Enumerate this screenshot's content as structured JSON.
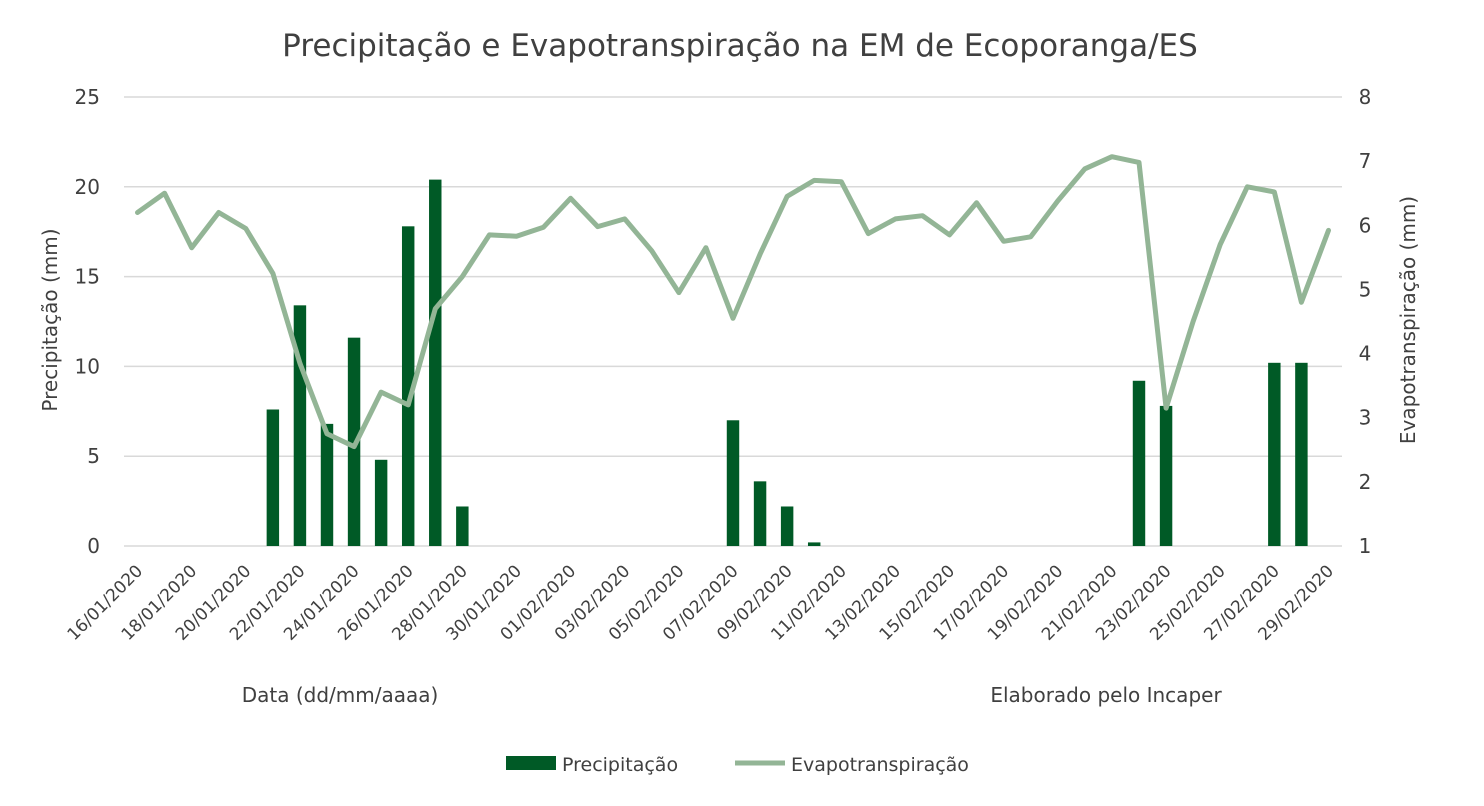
{
  "chart_data": {
    "type": "bar+line",
    "title": "Precipitação e Evapotranspiração na EM de Ecoporanga/ES",
    "xlabel": "Data (dd/mm/aaaa)",
    "note": "Elaborado pelo Incaper",
    "y_left": {
      "label": "Precipitação (mm)",
      "min": 0,
      "max": 25,
      "ticks": [
        0,
        5,
        10,
        15,
        20,
        25
      ]
    },
    "y_right": {
      "label": "Evapotranspiração (mm)",
      "min": 1,
      "max": 8,
      "ticks": [
        1,
        2,
        3,
        4,
        5,
        6,
        7,
        8
      ]
    },
    "grid": true,
    "legend_position": "bottom",
    "categories": [
      "16/01/2020",
      "17/01/2020",
      "18/01/2020",
      "19/01/2020",
      "20/01/2020",
      "21/01/2020",
      "22/01/2020",
      "23/01/2020",
      "24/01/2020",
      "25/01/2020",
      "26/01/2020",
      "27/01/2020",
      "28/01/2020",
      "29/01/2020",
      "30/01/2020",
      "31/01/2020",
      "01/02/2020",
      "02/02/2020",
      "03/02/2020",
      "04/02/2020",
      "05/02/2020",
      "06/02/2020",
      "07/02/2020",
      "08/02/2020",
      "09/02/2020",
      "10/02/2020",
      "11/02/2020",
      "12/02/2020",
      "13/02/2020",
      "14/02/2020",
      "15/02/2020",
      "16/02/2020",
      "17/02/2020",
      "18/02/2020",
      "19/02/2020",
      "20/02/2020",
      "21/02/2020",
      "22/02/2020",
      "23/02/2020",
      "24/02/2020",
      "25/02/2020",
      "26/02/2020",
      "27/02/2020",
      "28/02/2020",
      "29/02/2020"
    ],
    "x_tick_labels": [
      "16/01/2020",
      "18/01/2020",
      "20/01/2020",
      "22/01/2020",
      "24/01/2020",
      "26/01/2020",
      "28/01/2020",
      "30/01/2020",
      "01/02/2020",
      "03/02/2020",
      "05/02/2020",
      "07/02/2020",
      "09/02/2020",
      "11/02/2020",
      "13/02/2020",
      "15/02/2020",
      "17/02/2020",
      "19/02/2020",
      "21/02/2020",
      "23/02/2020",
      "25/02/2020",
      "27/02/2020",
      "29/02/2020"
    ],
    "series": [
      {
        "name": "Precipitação",
        "type": "bar",
        "axis": "left",
        "color": "#005a26",
        "values": [
          0,
          0,
          0,
          0,
          0,
          7.6,
          13.4,
          6.8,
          11.6,
          4.8,
          17.8,
          20.4,
          2.2,
          0,
          0,
          0,
          0,
          0,
          0,
          0,
          0,
          0,
          7.0,
          3.6,
          2.2,
          0.2,
          0,
          0,
          0,
          0,
          0,
          0,
          0,
          0,
          0,
          0,
          0,
          9.2,
          7.8,
          0,
          0,
          0,
          10.2,
          10.2,
          0
        ]
      },
      {
        "name": "Evapotranspiração",
        "type": "line",
        "axis": "right",
        "color": "#93b596",
        "values": [
          6.2,
          6.5,
          5.65,
          6.2,
          5.95,
          5.25,
          3.85,
          2.75,
          2.55,
          3.4,
          3.2,
          4.7,
          5.2,
          5.85,
          5.83,
          5.97,
          6.42,
          5.98,
          6.1,
          5.6,
          4.95,
          5.65,
          4.55,
          5.55,
          6.45,
          6.7,
          6.68,
          5.87,
          6.1,
          6.15,
          5.85,
          6.35,
          5.75,
          5.82,
          6.38,
          6.88,
          7.07,
          6.98,
          3.15,
          4.5,
          5.7,
          6.6,
          6.52,
          4.8,
          5.92
        ]
      }
    ]
  }
}
